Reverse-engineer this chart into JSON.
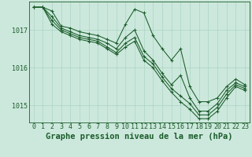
{
  "title": "Graphe pression niveau de la mer (hPa)",
  "background_color": "#cce8dc",
  "grid_color": "#aad4c4",
  "line_color": "#1a5c2a",
  "xlim": [
    -0.5,
    23.5
  ],
  "ylim": [
    1014.55,
    1017.75
  ],
  "yticks": [
    1015,
    1016,
    1017
  ],
  "xticks": [
    0,
    1,
    2,
    3,
    4,
    5,
    6,
    7,
    8,
    9,
    10,
    11,
    12,
    13,
    14,
    15,
    16,
    17,
    18,
    19,
    20,
    21,
    22,
    23
  ],
  "series": [
    [
      1017.6,
      1017.6,
      1017.5,
      1017.1,
      1017.05,
      1016.95,
      1016.9,
      1016.85,
      1016.75,
      1016.65,
      1017.15,
      1017.55,
      1017.45,
      1016.85,
      1016.5,
      1016.2,
      1016.5,
      1015.5,
      1015.1,
      1015.1,
      1015.2,
      1015.5,
      1015.7,
      1015.55
    ],
    [
      1017.6,
      1017.6,
      1017.35,
      1017.05,
      1016.95,
      1016.85,
      1016.8,
      1016.75,
      1016.65,
      1016.5,
      1016.8,
      1017.0,
      1016.45,
      1016.2,
      1015.85,
      1015.55,
      1015.8,
      1015.2,
      1014.85,
      1014.85,
      1015.05,
      1015.4,
      1015.6,
      1015.5
    ],
    [
      1017.6,
      1017.6,
      1017.25,
      1017.0,
      1016.9,
      1016.8,
      1016.75,
      1016.7,
      1016.55,
      1016.4,
      1016.65,
      1016.8,
      1016.3,
      1016.1,
      1015.75,
      1015.45,
      1015.25,
      1015.05,
      1014.75,
      1014.75,
      1014.95,
      1015.3,
      1015.55,
      1015.45
    ],
    [
      1017.6,
      1017.6,
      1017.15,
      1016.95,
      1016.85,
      1016.75,
      1016.7,
      1016.65,
      1016.5,
      1016.35,
      1016.55,
      1016.7,
      1016.2,
      1016.0,
      1015.65,
      1015.35,
      1015.1,
      1014.9,
      1014.65,
      1014.65,
      1014.85,
      1015.2,
      1015.5,
      1015.4
    ]
  ],
  "tick_fontsize": 6,
  "title_fontsize": 7.5,
  "marker": "+"
}
